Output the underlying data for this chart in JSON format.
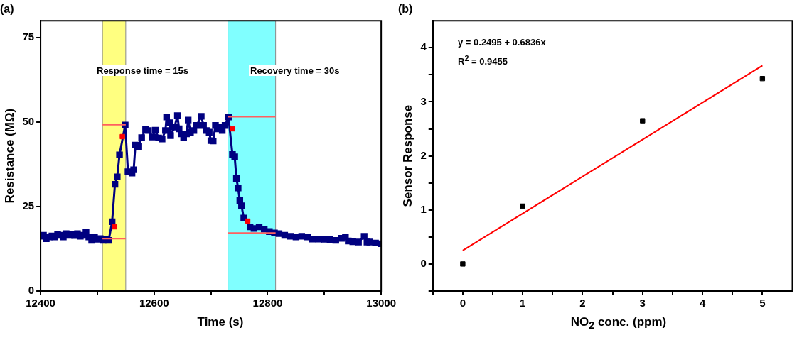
{
  "chart_data": [
    {
      "type": "line",
      "title": "(a)",
      "xlabel": "Time (s)",
      "ylabel": "Resistance (MΩ)",
      "xlim": [
        12400,
        13000
      ],
      "xticks": [
        12400,
        {
          "value": 12500,
          "label": null
        },
        12600,
        {
          "value": 12700,
          "label": null
        },
        12800,
        {
          "value": 12900,
          "label": null
        },
        13000
      ],
      "ylim": [
        0,
        80
      ],
      "yticks": [
        0,
        25,
        50,
        75
      ],
      "bands": [
        {
          "axis": "x",
          "from": 12509,
          "to": 12550,
          "color": "#ffff80"
        },
        {
          "axis": "x",
          "from": 12730,
          "to": 12814,
          "color": "#80ffff"
        }
      ],
      "annotations": [
        "Response time = 15s",
        "Recovery time = 30s"
      ],
      "marker": "square",
      "series": [
        {
          "color": "#000080",
          "x": [
            12400,
            12405,
            12410,
            12415,
            12420,
            12425,
            12430,
            12435,
            12440,
            12445,
            12450,
            12455,
            12460,
            12465,
            12470,
            12475,
            12480,
            12485,
            12490,
            12495,
            12500,
            12505,
            12510,
            12515,
            12520,
            12526,
            12531,
            12535,
            12539,
            12549,
            12554,
            12561,
            12564,
            12567,
            12573,
            12578,
            12585,
            12590,
            12597,
            12602,
            12608,
            12614,
            12620,
            12622,
            12627,
            12629,
            12636,
            12641,
            12644,
            12648,
            12652,
            12657,
            12660,
            12664,
            12670,
            12675,
            12683,
            12687,
            12692,
            12697,
            12700,
            12704,
            12708,
            12712,
            12716,
            12720,
            12725,
            12731,
            12738,
            12742,
            12745,
            12748,
            12751,
            12754,
            12758,
            12769,
            12776,
            12785,
            12794,
            12803,
            12812,
            12820,
            12830,
            12840,
            12850,
            12860,
            12870,
            12879,
            12890,
            12900,
            12910,
            12920,
            12930,
            12937,
            12942,
            12950,
            12960,
            12970,
            12975,
            12980,
            12990,
            13000
          ],
          "values": [
            16.2,
            16.5,
            15.5,
            16.0,
            16.3,
            16.0,
            16.8,
            16.5,
            16.0,
            17.0,
            16.5,
            16.8,
            16.4,
            17.0,
            16.2,
            16.5,
            17.5,
            16.0,
            15.0,
            15.8,
            15.3,
            15.5,
            15.0,
            15.2,
            15.0,
            20.5,
            31.6,
            33.8,
            40.3,
            49.1,
            35.3,
            34.9,
            35.9,
            43.2,
            42.7,
            45.4,
            47.8,
            47.5,
            45.6,
            47.6,
            45.3,
            45.0,
            47.5,
            51.5,
            49.8,
            46.0,
            48.5,
            51.9,
            48.0,
            46.5,
            45.5,
            46.5,
            50.6,
            47.0,
            47.5,
            49.0,
            51.7,
            49.0,
            47.5,
            47.0,
            44.5,
            44.4,
            49.0,
            48.0,
            48.5,
            47.5,
            49.0,
            51.5,
            40.4,
            39.7,
            33.3,
            30.5,
            26.8,
            25.2,
            21.6,
            19.0,
            18.5,
            19.0,
            18.3,
            17.6,
            17.2,
            17.0,
            16.5,
            16.2,
            16.0,
            16.2,
            16.0,
            15.4,
            15.4,
            15.3,
            15.2,
            15.0,
            15.6,
            16.0,
            14.8,
            14.6,
            14.5,
            16.2,
            14.5,
            14.5,
            14.2,
            14.0
          ]
        },
        {
          "type": "scatter",
          "color": "#ff0000",
          "x": [
            12530,
            12544,
            12738,
            12765
          ],
          "values": [
            19.0,
            45.7,
            48.0,
            20.7
          ]
        },
        {
          "color": "#ff6060",
          "marker": "none",
          "x": [
            12509,
            12550
          ],
          "values": [
            49.2,
            49.2
          ]
        },
        {
          "color": "#ff6060",
          "marker": "none",
          "x": [
            12509,
            12550
          ],
          "values": [
            15.5,
            15.5
          ]
        },
        {
          "color": "#ff6060",
          "marker": "none",
          "x": [
            12730,
            12814
          ],
          "values": [
            51.6,
            51.6
          ]
        },
        {
          "color": "#ff6060",
          "marker": "none",
          "x": [
            12730,
            12814
          ],
          "values": [
            17.2,
            17.2
          ]
        }
      ]
    },
    {
      "type": "scatter",
      "title": "(b)",
      "xlabel": "NO$_{2}$ conc. (ppm)",
      "ylabel": "Sensor Response",
      "xlim": [
        -0.5,
        5.5
      ],
      "xticks": [
        {
          "value": -0.5,
          "label": null
        },
        0,
        {
          "value": 0.5,
          "label": null
        },
        1,
        {
          "value": 1.5,
          "label": null
        },
        2,
        {
          "value": 2.5,
          "label": null
        },
        3,
        {
          "value": 3.5,
          "label": null
        },
        4,
        {
          "value": 4.5,
          "label": null
        },
        5
      ],
      "ylim": [
        -0.5,
        4.5
      ],
      "yticks": [
        {
          "value": -0.5,
          "label": null
        },
        0,
        {
          "value": 0.5,
          "label": null
        },
        1,
        {
          "value": 1.5,
          "label": null
        },
        2,
        {
          "value": 2.5,
          "label": null
        },
        3,
        {
          "value": 3.5,
          "label": null
        },
        4
      ],
      "annotations": [
        "y = 0.2495 + 0.6836x",
        "R$^{2}$ = 0.9455"
      ],
      "marker": "square",
      "series": [
        {
          "color": "#000000",
          "x": [
            0,
            1,
            3,
            5
          ],
          "values": [
            0,
            1.07,
            2.65,
            3.43
          ]
        },
        {
          "type": "line",
          "color": "#ff0000",
          "marker": "none",
          "x": [
            0,
            5
          ],
          "values": [
            0.25,
            3.67
          ]
        }
      ]
    }
  ]
}
